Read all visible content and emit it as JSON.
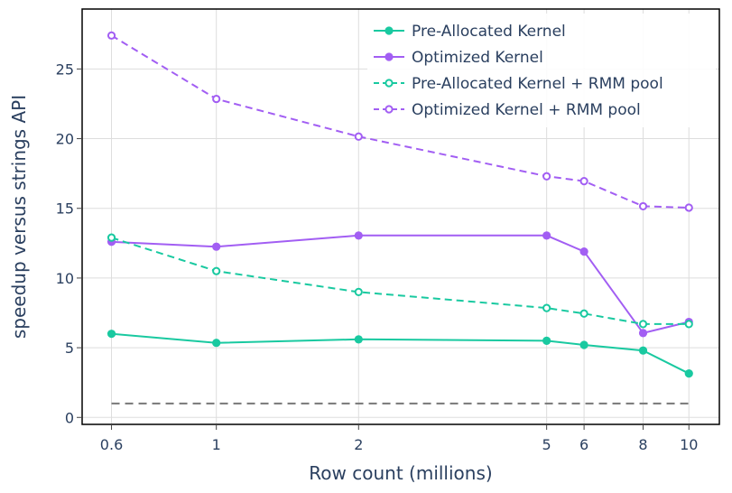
{
  "colors": {
    "pre_allocated": "#19c9a0",
    "optimized": "#a25ef3",
    "baseline": "#777777",
    "grid": "#dddddd",
    "frame": "#000000",
    "text": "#2a3f5f"
  },
  "chart_data": {
    "type": "line",
    "xlabel": "Row count (millions)",
    "ylabel": "speedup versus strings API",
    "x_scale": "log",
    "xlim": [
      0.52,
      11.6
    ],
    "ylim": [
      -0.5,
      29.3
    ],
    "grid": true,
    "legend_position": "top-right",
    "x_ticks": [
      0.6,
      1,
      2,
      5,
      6,
      8,
      10
    ],
    "x_tick_labels": [
      "0.6",
      "1",
      "2",
      "5",
      "6",
      "8",
      "10"
    ],
    "y_ticks": [
      0,
      5,
      10,
      15,
      20,
      25
    ],
    "y_tick_labels": [
      "0",
      "5",
      "10",
      "15",
      "20",
      "25"
    ],
    "x": [
      0.6,
      1,
      2,
      5,
      6,
      8,
      10
    ],
    "series": [
      {
        "name": "Pre-Allocated Kernel",
        "color_key": "pre_allocated",
        "dash": "solid",
        "marker": "filled",
        "values": [
          6.0,
          5.35,
          5.6,
          5.5,
          5.2,
          4.8,
          3.15
        ]
      },
      {
        "name": "Optimized Kernel",
        "color_key": "optimized",
        "dash": "solid",
        "marker": "filled",
        "values": [
          12.6,
          12.25,
          13.05,
          13.05,
          11.9,
          6.05,
          6.85
        ]
      },
      {
        "name": "Pre-Allocated Kernel + RMM pool",
        "color_key": "pre_allocated",
        "dash": "dashed",
        "marker": "open",
        "values": [
          12.9,
          10.5,
          9.0,
          7.85,
          7.45,
          6.7,
          6.7
        ]
      },
      {
        "name": "Optimized Kernel + RMM pool",
        "color_key": "optimized",
        "dash": "dashed",
        "marker": "open",
        "values": [
          27.4,
          22.85,
          20.15,
          17.3,
          16.95,
          15.15,
          15.05
        ]
      }
    ],
    "reference_line": {
      "y": 1,
      "x_range": [
        0.6,
        10
      ],
      "style": "dashed",
      "color_key": "baseline"
    }
  }
}
